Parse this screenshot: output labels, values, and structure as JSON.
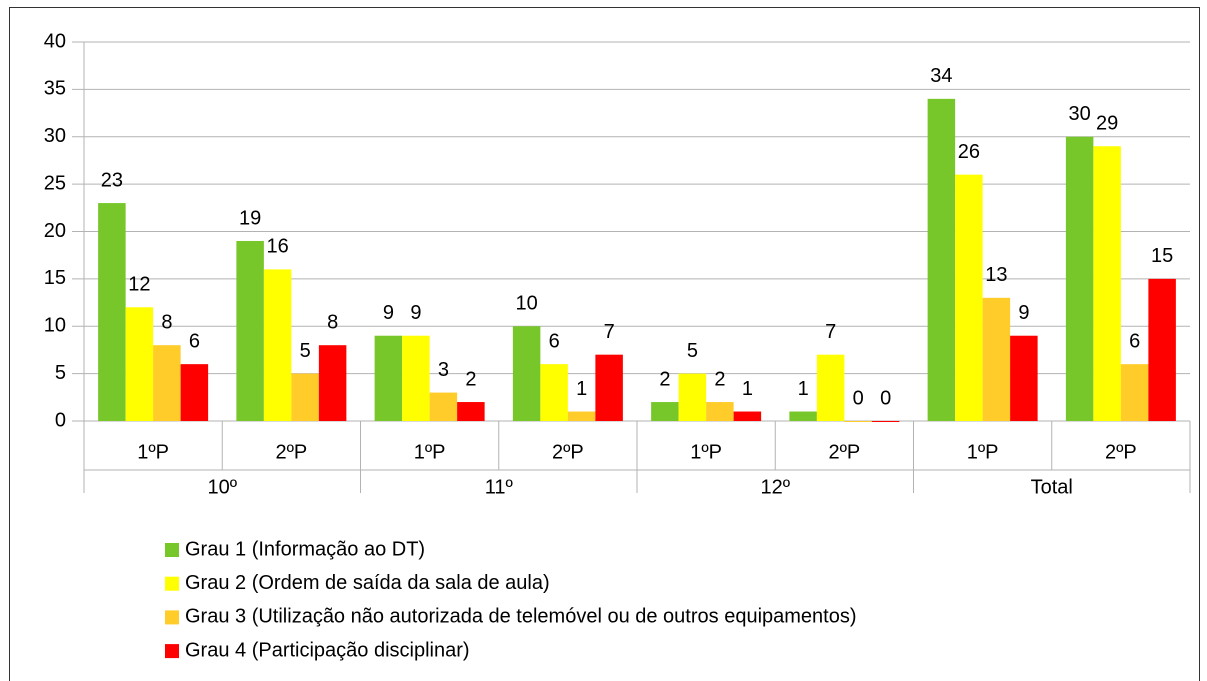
{
  "chart_data": {
    "type": "bar",
    "categories": [
      "1ºP",
      "2ºP",
      "1ºP",
      "2ºP",
      "1ºP",
      "2ºP",
      "1ºP",
      "2ºP"
    ],
    "category_groups": [
      "10º",
      "11º",
      "12º",
      "Total"
    ],
    "series": [
      {
        "name": "Grau 1 (Informação ao DT)",
        "color": "#77c72a",
        "values": [
          23,
          19,
          9,
          10,
          2,
          1,
          34,
          30
        ]
      },
      {
        "name": "Grau 2 (Ordem de saída da sala de aula)",
        "color": "#ffff00",
        "values": [
          12,
          16,
          9,
          6,
          5,
          7,
          26,
          29
        ]
      },
      {
        "name": "Grau 3 (Utilização não autorizada de telemóvel ou de outros equipamentos)",
        "color": "#ffcc29",
        "values": [
          8,
          5,
          3,
          1,
          2,
          0,
          13,
          6
        ]
      },
      {
        "name": "Grau 4 (Participação disciplinar)",
        "color": "#ff0000",
        "values": [
          6,
          8,
          2,
          7,
          1,
          0,
          9,
          15
        ]
      }
    ],
    "ylim": [
      0,
      40
    ],
    "yticks": [
      0,
      5,
      10,
      15,
      20,
      25,
      30,
      35,
      40
    ],
    "grid": true,
    "legend": "bottom"
  }
}
